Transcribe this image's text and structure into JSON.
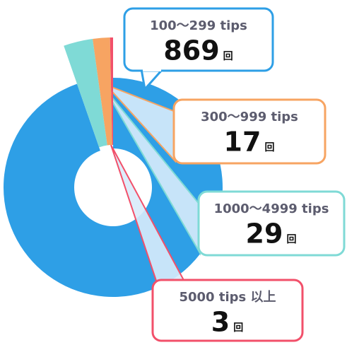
{
  "chart_data": {
    "type": "pie",
    "donut": true,
    "categories": [
      "100〜299 tips",
      "300〜999 tips",
      "1000〜4999 tips",
      "5000 tips 以上"
    ],
    "values": [
      869,
      17,
      29,
      3
    ],
    "colors": [
      "#2e9fe6",
      "#f7a462",
      "#7fdad6",
      "#f2506a"
    ],
    "unit": "回"
  }
}
